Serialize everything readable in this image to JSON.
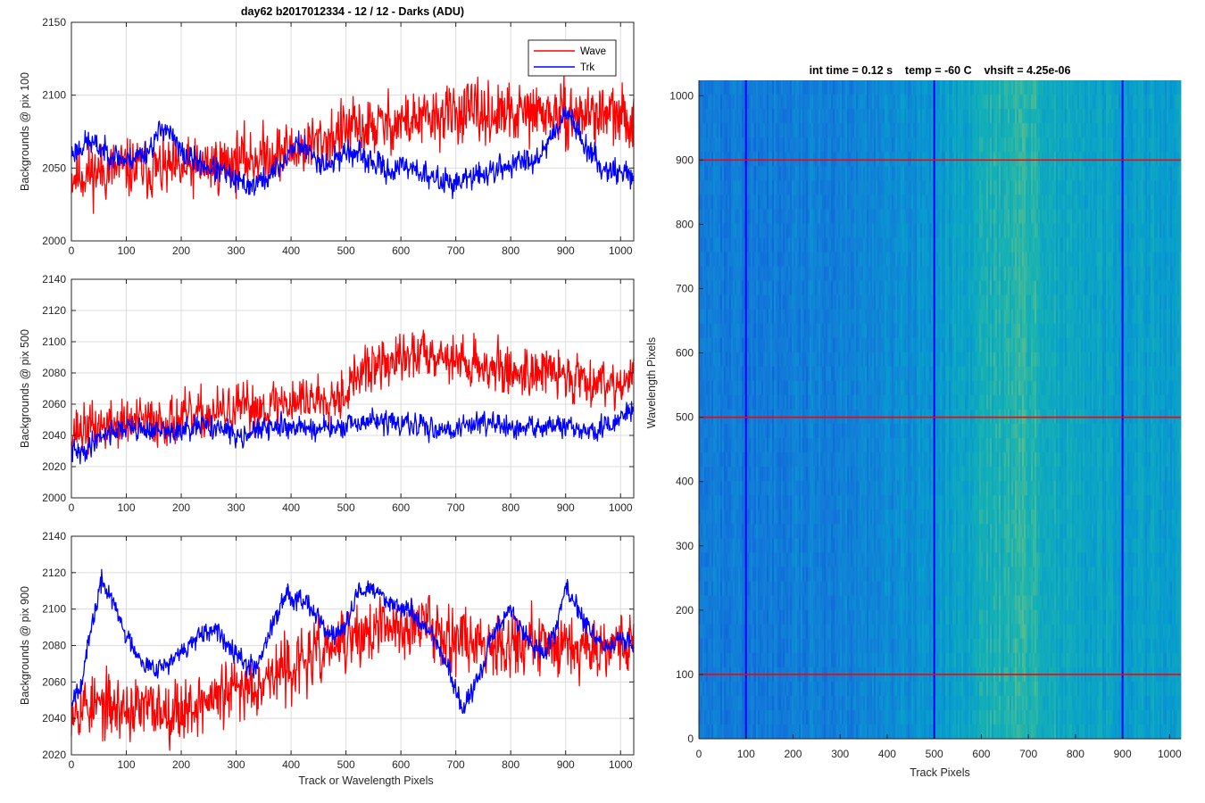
{
  "figure": {
    "title": "day62 b2017012334 - 12 / 12 - Darks (ADU)",
    "colors": {
      "wave": "#ff0000",
      "trk": "#0000ff",
      "grid": "#dcdcdc",
      "axis": "#262626"
    }
  },
  "chart_data": [
    {
      "type": "line",
      "title": "day62 b2017012334 - 12 / 12 - Darks (ADU)",
      "xlabel": "",
      "ylabel": "Backgrounds @ pix 100",
      "xlim": [
        0,
        1024
      ],
      "ylim": [
        2000,
        2150
      ],
      "xticks": [
        0,
        100,
        200,
        300,
        400,
        500,
        600,
        700,
        800,
        900,
        1000
      ],
      "yticks": [
        2000,
        2050,
        2100,
        2150
      ],
      "grid": true,
      "legend": {
        "position": "top-right",
        "entries": [
          "Wave",
          "Trk"
        ]
      },
      "series": [
        {
          "name": "Wave",
          "color": "#ff0000",
          "noise": 14,
          "seed": 11,
          "x": [
            0,
            100,
            200,
            300,
            400,
            450,
            500,
            550,
            600,
            650,
            700,
            750,
            800,
            850,
            900,
            950,
            1000,
            1024
          ],
          "values": [
            2045,
            2050,
            2048,
            2055,
            2062,
            2068,
            2076,
            2078,
            2082,
            2083,
            2088,
            2087,
            2086,
            2088,
            2085,
            2088,
            2084,
            2082
          ]
        },
        {
          "name": "Trk",
          "color": "#0000ff",
          "noise": 6,
          "seed": 23,
          "x": [
            0,
            30,
            60,
            100,
            140,
            170,
            200,
            240,
            280,
            300,
            330,
            360,
            390,
            410,
            440,
            470,
            500,
            540,
            580,
            620,
            650,
            700,
            750,
            800,
            850,
            880,
            900,
            930,
            960,
            1000,
            1024
          ],
          "values": [
            2060,
            2068,
            2062,
            2055,
            2062,
            2080,
            2060,
            2052,
            2046,
            2040,
            2038,
            2044,
            2056,
            2068,
            2058,
            2052,
            2062,
            2055,
            2048,
            2052,
            2043,
            2040,
            2046,
            2052,
            2058,
            2075,
            2090,
            2070,
            2052,
            2047,
            2045
          ]
        }
      ]
    },
    {
      "type": "line",
      "title": "",
      "xlabel": "",
      "ylabel": "Backgrounds @ pix 500",
      "xlim": [
        0,
        1024
      ],
      "ylim": [
        2000,
        2140
      ],
      "xticks": [
        0,
        100,
        200,
        300,
        400,
        500,
        600,
        700,
        800,
        900,
        1000
      ],
      "yticks": [
        2000,
        2020,
        2040,
        2060,
        2080,
        2100,
        2120,
        2140
      ],
      "grid": true,
      "series": [
        {
          "name": "Wave",
          "color": "#ff0000",
          "noise": 11,
          "seed": 37,
          "x": [
            0,
            100,
            200,
            300,
            400,
            450,
            500,
            520,
            560,
            600,
            650,
            700,
            750,
            800,
            850,
            900,
            950,
            1000,
            1024
          ],
          "values": [
            2043,
            2048,
            2050,
            2056,
            2062,
            2064,
            2068,
            2078,
            2085,
            2088,
            2095,
            2088,
            2085,
            2080,
            2082,
            2078,
            2076,
            2074,
            2076
          ]
        },
        {
          "name": "Trk",
          "color": "#0000ff",
          "noise": 5,
          "seed": 41,
          "x": [
            0,
            20,
            50,
            100,
            150,
            200,
            250,
            300,
            350,
            400,
            450,
            500,
            550,
            600,
            650,
            700,
            750,
            800,
            850,
            900,
            950,
            1000,
            1024
          ],
          "values": [
            2030,
            2028,
            2040,
            2045,
            2043,
            2042,
            2047,
            2040,
            2044,
            2046,
            2044,
            2045,
            2050,
            2047,
            2045,
            2044,
            2050,
            2043,
            2046,
            2045,
            2042,
            2050,
            2058
          ]
        }
      ]
    },
    {
      "type": "line",
      "title": "",
      "xlabel": "Track or Wavelength Pixels",
      "ylabel": "Backgrounds @ pix 900",
      "xlim": [
        0,
        1024
      ],
      "ylim": [
        2020,
        2140
      ],
      "xticks": [
        0,
        100,
        200,
        300,
        400,
        500,
        600,
        700,
        800,
        900,
        1000
      ],
      "yticks": [
        2020,
        2040,
        2060,
        2080,
        2100,
        2120,
        2140
      ],
      "grid": true,
      "series": [
        {
          "name": "Wave",
          "color": "#ff0000",
          "noise": 12,
          "seed": 53,
          "x": [
            0,
            100,
            200,
            300,
            350,
            400,
            450,
            500,
            550,
            600,
            650,
            700,
            750,
            800,
            850,
            900,
            950,
            1000,
            1024
          ],
          "values": [
            2048,
            2045,
            2045,
            2055,
            2062,
            2068,
            2075,
            2082,
            2088,
            2090,
            2092,
            2085,
            2082,
            2082,
            2080,
            2082,
            2080,
            2082,
            2082
          ]
        },
        {
          "name": "Trk",
          "color": "#0000ff",
          "noise": 4,
          "seed": 67,
          "x": [
            0,
            20,
            40,
            55,
            70,
            100,
            140,
            180,
            220,
            260,
            300,
            320,
            340,
            360,
            390,
            430,
            470,
            500,
            520,
            540,
            570,
            620,
            660,
            690,
            710,
            740,
            770,
            800,
            830,
            860,
            880,
            900,
            920,
            950,
            980,
            1000,
            1024
          ],
          "values": [
            2050,
            2062,
            2095,
            2115,
            2108,
            2085,
            2068,
            2070,
            2082,
            2088,
            2078,
            2068,
            2070,
            2088,
            2108,
            2105,
            2085,
            2090,
            2108,
            2112,
            2106,
            2098,
            2085,
            2065,
            2045,
            2060,
            2088,
            2100,
            2083,
            2075,
            2088,
            2112,
            2100,
            2086,
            2078,
            2084,
            2080
          ]
        }
      ]
    },
    {
      "type": "heatmap",
      "title": "int time = 0.12 s    temp = -60 C    vhsift = 4.25e-06",
      "xlabel": "Track Pixels",
      "ylabel": "Wavelength Pixels",
      "xlim": [
        0,
        1024
      ],
      "ylim": [
        0,
        1024
      ],
      "xticks": [
        0,
        100,
        200,
        300,
        400,
        500,
        600,
        700,
        800,
        900,
        1000
      ],
      "yticks": [
        0,
        100,
        200,
        300,
        400,
        500,
        600,
        700,
        800,
        900,
        1000
      ],
      "colormap": "parula",
      "column_profile": {
        "x": [
          0,
          100,
          200,
          300,
          400,
          500,
          550,
          600,
          650,
          680,
          720,
          800,
          900,
          1000,
          1024
        ],
        "level": [
          0.3,
          0.28,
          0.3,
          0.33,
          0.36,
          0.42,
          0.5,
          0.55,
          0.62,
          0.64,
          0.58,
          0.5,
          0.48,
          0.47,
          0.46
        ]
      },
      "vertical_markers": {
        "color": "#0000ff",
        "x": [
          100,
          500,
          900
        ]
      },
      "horizontal_markers": {
        "color": "#ff0000",
        "y": [
          100,
          500,
          900
        ]
      }
    }
  ]
}
